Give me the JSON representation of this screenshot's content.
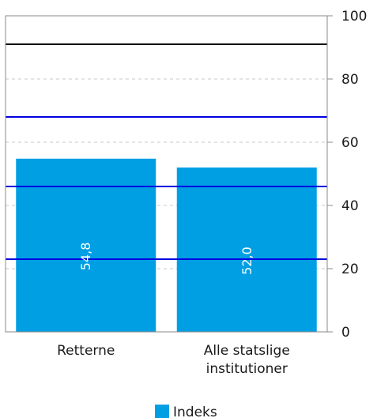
{
  "chart_data": {
    "type": "bar",
    "categories": [
      "Retterne",
      "Alle statslige institutioner"
    ],
    "category_label_lines": [
      [
        "Retterne"
      ],
      [
        "Alle statslige",
        "institutioner"
      ]
    ],
    "series": [
      {
        "name": "Indeks",
        "values": [
          54.8,
          52.0
        ],
        "data_labels": [
          "54,8",
          "52,0"
        ],
        "color": "#009fe3"
      }
    ],
    "ylim": [
      0,
      100
    ],
    "yticks": [
      0,
      20,
      40,
      60,
      80,
      100
    ],
    "ytick_labels": [
      "0",
      "20",
      "40",
      "60",
      "80",
      "100"
    ],
    "y_axis_side": "right",
    "grid": true,
    "reference_lines": [
      {
        "value": 91,
        "color": "#000000"
      },
      {
        "value": 68,
        "color": "#0000e0"
      },
      {
        "value": 46,
        "color": "#0000e0"
      },
      {
        "value": 23,
        "color": "#0000e0"
      }
    ],
    "legend_placement": "bottom-center",
    "title": "",
    "xlabel": "",
    "ylabel": ""
  }
}
